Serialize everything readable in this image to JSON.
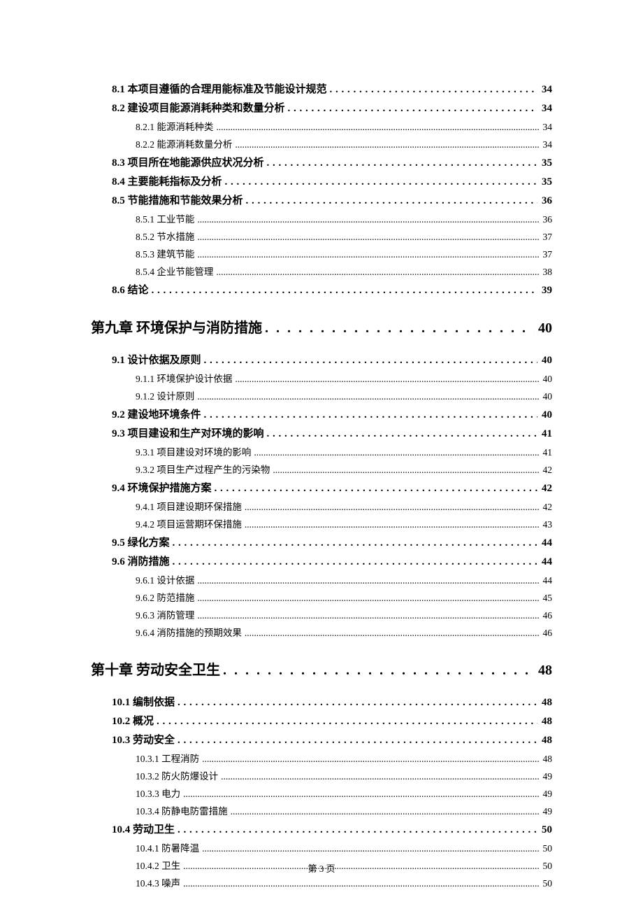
{
  "footer": "第 3 页",
  "toc": [
    {
      "level": 1,
      "title": "8.1 本项目遵循的合理用能标准及节能设计规范",
      "page": "34"
    },
    {
      "level": 1,
      "title": "8.2 建设项目能源消耗种类和数量分析",
      "page": "34"
    },
    {
      "level": 2,
      "title": "8.2.1 能源消耗种类",
      "page": "34"
    },
    {
      "level": 2,
      "title": "8.2.2 能源消耗数量分析",
      "page": "34"
    },
    {
      "level": 1,
      "title": "8.3 项目所在地能源供应状况分析",
      "page": "35"
    },
    {
      "level": 1,
      "title": "8.4 主要能耗指标及分析",
      "page": "35"
    },
    {
      "level": 1,
      "title": "8.5 节能措施和节能效果分析",
      "page": "36"
    },
    {
      "level": 2,
      "title": "8.5.1 工业节能",
      "page": "36"
    },
    {
      "level": 2,
      "title": "8.5.2 节水措施",
      "page": "37"
    },
    {
      "level": 2,
      "title": "8.5.3 建筑节能",
      "page": "37"
    },
    {
      "level": 2,
      "title": "8.5.4 企业节能管理",
      "page": "38"
    },
    {
      "level": 1,
      "title": "8.6 结论",
      "page": "39"
    },
    {
      "level": 0,
      "title": "第九章  环境保护与消防措施",
      "page": "40"
    },
    {
      "level": 1,
      "title": "9.1 设计依据及原则",
      "page": "40"
    },
    {
      "level": 2,
      "title": "9.1.1 环境保护设计依据",
      "page": "40"
    },
    {
      "level": 2,
      "title": "9.1.2 设计原则",
      "page": "40"
    },
    {
      "level": 1,
      "title": "9.2 建设地环境条件",
      "page": "40"
    },
    {
      "level": 1,
      "title": "9.3  项目建设和生产对环境的影响",
      "page": "41"
    },
    {
      "level": 2,
      "title": "9.3.1  项目建设对环境的影响",
      "page": "41"
    },
    {
      "level": 2,
      "title": "9.3.2  项目生产过程产生的污染物",
      "page": "42"
    },
    {
      "level": 1,
      "title": "9.4  环境保护措施方案",
      "page": "42"
    },
    {
      "level": 2,
      "title": "9.4.1  项目建设期环保措施",
      "page": "42"
    },
    {
      "level": 2,
      "title": "9.4.2  项目运营期环保措施",
      "page": "43"
    },
    {
      "level": 1,
      "title": "9.5 绿化方案",
      "page": "44"
    },
    {
      "level": 1,
      "title": "9.6 消防措施",
      "page": "44"
    },
    {
      "level": 2,
      "title": "9.6.1 设计依据",
      "page": "44"
    },
    {
      "level": 2,
      "title": "9.6.2 防范措施",
      "page": "45"
    },
    {
      "level": 2,
      "title": "9.6.3 消防管理",
      "page": "46"
    },
    {
      "level": 2,
      "title": "9.6.4 消防措施的预期效果",
      "page": "46"
    },
    {
      "level": 0,
      "title": "第十章  劳动安全卫生",
      "page": "48"
    },
    {
      "level": 1,
      "title": "10.1  编制依据",
      "page": "48"
    },
    {
      "level": 1,
      "title": "10.2 概况",
      "page": "48"
    },
    {
      "level": 1,
      "title": "10.3  劳动安全",
      "page": "48"
    },
    {
      "level": 2,
      "title": "10.3.1 工程消防",
      "page": "48"
    },
    {
      "level": 2,
      "title": "10.3.2 防火防爆设计",
      "page": "49"
    },
    {
      "level": 2,
      "title": "10.3.3 电力",
      "page": "49"
    },
    {
      "level": 2,
      "title": "10.3.4 防静电防雷措施",
      "page": "49"
    },
    {
      "level": 1,
      "title": "10.4 劳动卫生",
      "page": "50"
    },
    {
      "level": 2,
      "title": "10.4.1 防暑降温",
      "page": "50"
    },
    {
      "level": 2,
      "title": "10.4.2 卫生",
      "page": "50"
    },
    {
      "level": 2,
      "title": "10.4.3 噪声",
      "page": "50"
    }
  ]
}
